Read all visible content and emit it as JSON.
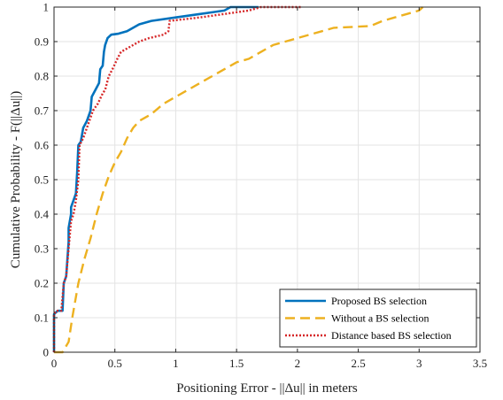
{
  "chart_data": {
    "type": "line",
    "xlabel": "Positioning Error - ||Δu|| in meters",
    "ylabel": "Cumulative Probability - F(||Δu||)",
    "xlim": [
      0,
      3.5
    ],
    "ylim": [
      0,
      1
    ],
    "xticks": [
      "0",
      "0.5",
      "1",
      "1.5",
      "2",
      "2.5",
      "3",
      "3.5"
    ],
    "yticks": [
      "0",
      "0.1",
      "0.2",
      "0.3",
      "0.4",
      "0.5",
      "0.6",
      "0.7",
      "0.8",
      "0.9",
      "1"
    ],
    "grid": true,
    "legend_position": "bottom-right",
    "series": [
      {
        "name": "Proposed BS selection",
        "color": "#0072bd",
        "style": "solid",
        "points": [
          [
            0,
            0
          ],
          [
            0,
            0.11
          ],
          [
            0.03,
            0.12
          ],
          [
            0.07,
            0.12
          ],
          [
            0.08,
            0.2
          ],
          [
            0.1,
            0.22
          ],
          [
            0.12,
            0.32
          ],
          [
            0.12,
            0.36
          ],
          [
            0.14,
            0.4
          ],
          [
            0.14,
            0.42
          ],
          [
            0.16,
            0.44
          ],
          [
            0.18,
            0.46
          ],
          [
            0.19,
            0.52
          ],
          [
            0.2,
            0.6
          ],
          [
            0.22,
            0.61
          ],
          [
            0.24,
            0.65
          ],
          [
            0.27,
            0.67
          ],
          [
            0.3,
            0.7
          ],
          [
            0.31,
            0.74
          ],
          [
            0.34,
            0.76
          ],
          [
            0.37,
            0.78
          ],
          [
            0.38,
            0.82
          ],
          [
            0.4,
            0.83
          ],
          [
            0.41,
            0.87
          ],
          [
            0.42,
            0.89
          ],
          [
            0.44,
            0.91
          ],
          [
            0.47,
            0.92
          ],
          [
            0.53,
            0.923
          ],
          [
            0.6,
            0.93
          ],
          [
            0.65,
            0.94
          ],
          [
            0.7,
            0.95
          ],
          [
            0.8,
            0.96
          ],
          [
            1.0,
            0.97
          ],
          [
            1.2,
            0.98
          ],
          [
            1.3,
            0.985
          ],
          [
            1.4,
            0.99
          ],
          [
            1.45,
            1.0
          ],
          [
            1.68,
            1.0
          ]
        ]
      },
      {
        "name": "Without a BS selection",
        "color": "#edb120",
        "style": "dashed",
        "points": [
          [
            0,
            0
          ],
          [
            0.07,
            0
          ],
          [
            0.12,
            0.03
          ],
          [
            0.15,
            0.1
          ],
          [
            0.2,
            0.2
          ],
          [
            0.25,
            0.27
          ],
          [
            0.3,
            0.33
          ],
          [
            0.35,
            0.4
          ],
          [
            0.4,
            0.46
          ],
          [
            0.45,
            0.51
          ],
          [
            0.5,
            0.55
          ],
          [
            0.55,
            0.58
          ],
          [
            0.6,
            0.62
          ],
          [
            0.65,
            0.65
          ],
          [
            0.7,
            0.67
          ],
          [
            0.8,
            0.69
          ],
          [
            0.9,
            0.72
          ],
          [
            1.0,
            0.74
          ],
          [
            1.1,
            0.76
          ],
          [
            1.2,
            0.78
          ],
          [
            1.3,
            0.8
          ],
          [
            1.4,
            0.82
          ],
          [
            1.5,
            0.84
          ],
          [
            1.6,
            0.85
          ],
          [
            1.7,
            0.87
          ],
          [
            1.8,
            0.89
          ],
          [
            1.9,
            0.9
          ],
          [
            2.0,
            0.91
          ],
          [
            2.1,
            0.92
          ],
          [
            2.2,
            0.93
          ],
          [
            2.3,
            0.94
          ],
          [
            2.6,
            0.945
          ],
          [
            2.7,
            0.96
          ],
          [
            2.8,
            0.97
          ],
          [
            2.9,
            0.98
          ],
          [
            3.0,
            0.99
          ],
          [
            3.03,
            1.0
          ]
        ]
      },
      {
        "name": "Distance based BS selection",
        "color": "#d62728",
        "style": "dotted",
        "points": [
          [
            0,
            0
          ],
          [
            0,
            0.11
          ],
          [
            0.02,
            0.12
          ],
          [
            0.06,
            0.12
          ],
          [
            0.08,
            0.2
          ],
          [
            0.1,
            0.22
          ],
          [
            0.12,
            0.3
          ],
          [
            0.14,
            0.38
          ],
          [
            0.16,
            0.4
          ],
          [
            0.18,
            0.44
          ],
          [
            0.2,
            0.5
          ],
          [
            0.21,
            0.6
          ],
          [
            0.24,
            0.62
          ],
          [
            0.26,
            0.64
          ],
          [
            0.28,
            0.66
          ],
          [
            0.3,
            0.68
          ],
          [
            0.32,
            0.7
          ],
          [
            0.36,
            0.72
          ],
          [
            0.4,
            0.75
          ],
          [
            0.42,
            0.76
          ],
          [
            0.45,
            0.8
          ],
          [
            0.48,
            0.82
          ],
          [
            0.52,
            0.85
          ],
          [
            0.55,
            0.87
          ],
          [
            0.6,
            0.88
          ],
          [
            0.7,
            0.9
          ],
          [
            0.78,
            0.91
          ],
          [
            0.9,
            0.92
          ],
          [
            0.94,
            0.93
          ],
          [
            0.95,
            0.96
          ],
          [
            1.2,
            0.97
          ],
          [
            1.4,
            0.98
          ],
          [
            1.6,
            0.99
          ],
          [
            1.7,
            1.0
          ],
          [
            2.04,
            1.0
          ]
        ]
      }
    ]
  }
}
